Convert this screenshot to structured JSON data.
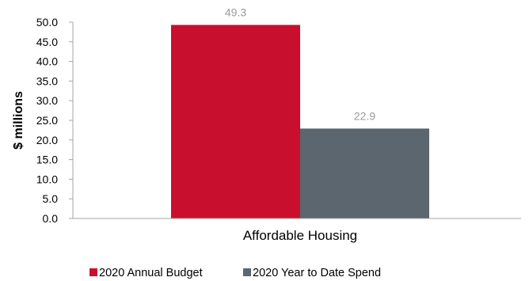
{
  "chart_data": {
    "type": "bar",
    "categories": [
      "Affordable Housing"
    ],
    "series": [
      {
        "name": "2020 Annual Budget",
        "values": [
          49.3
        ],
        "color": "#c8102e"
      },
      {
        "name": "2020 Year to Date Spend",
        "values": [
          22.9
        ],
        "color": "#5b666e"
      }
    ],
    "data_labels": [
      "49.3",
      "22.9"
    ],
    "ylabel": "$ millions",
    "ylim": [
      0,
      50
    ],
    "yticks": [
      "0.0",
      "5.0",
      "10.0",
      "15.0",
      "20.0",
      "25.0",
      "30.0",
      "35.0",
      "40.0",
      "45.0",
      "50.0"
    ],
    "grid": false,
    "legend_position": "bottom"
  }
}
